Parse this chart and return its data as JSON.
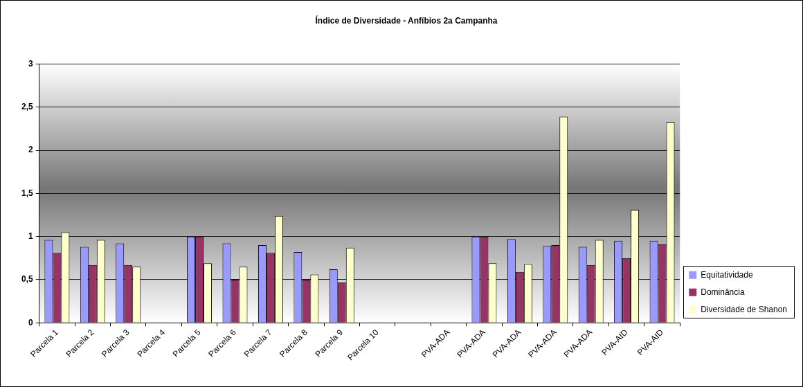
{
  "chart_data": {
    "type": "bar",
    "title": "Índice de Diversidade - Anfíbios 2a Campanha",
    "categories": [
      "Parcela 1",
      "Parcela 2",
      "Parcela 3",
      "Parcela 4",
      "Parcela 5",
      "Parcela 6",
      "Parcela 7",
      "Parcela 8",
      "Parcela 9",
      "Parcela 10",
      null,
      "PVA-ADA",
      "PVA-ADA",
      "PVA-ADA",
      "PVA-ADA",
      "PVA-ADA",
      "PVA-AID",
      "PVA-AID"
    ],
    "series": [
      {
        "name": "Equitatividade",
        "color": "#9999ff",
        "values": [
          0.96,
          0.88,
          0.92,
          null,
          1.0,
          0.92,
          0.9,
          0.82,
          0.62,
          null,
          null,
          null,
          1.0,
          0.97,
          0.89,
          0.88,
          0.95,
          0.95
        ]
      },
      {
        "name": "Dominância",
        "color": "#993366",
        "values": [
          0.81,
          0.67,
          0.67,
          null,
          1.0,
          0.5,
          0.81,
          0.5,
          0.47,
          null,
          null,
          null,
          1.0,
          0.59,
          0.9,
          0.67,
          0.75,
          0.91
        ]
      },
      {
        "name": "Diversidade de Shanon",
        "color": "#ffffcc",
        "values": [
          1.05,
          0.96,
          0.65,
          null,
          0.69,
          0.65,
          1.24,
          0.56,
          0.87,
          null,
          null,
          null,
          0.69,
          0.68,
          2.39,
          0.96,
          1.31,
          2.33
        ]
      }
    ],
    "ylim": [
      0,
      3
    ],
    "yticks": [
      0,
      {
        "value": 0.5,
        "label": "0,5"
      },
      1,
      {
        "value": 1.5,
        "label": "1,5"
      },
      2,
      {
        "value": 2.5,
        "label": "2,5"
      },
      3
    ],
    "grid": "y",
    "legend": "right"
  }
}
